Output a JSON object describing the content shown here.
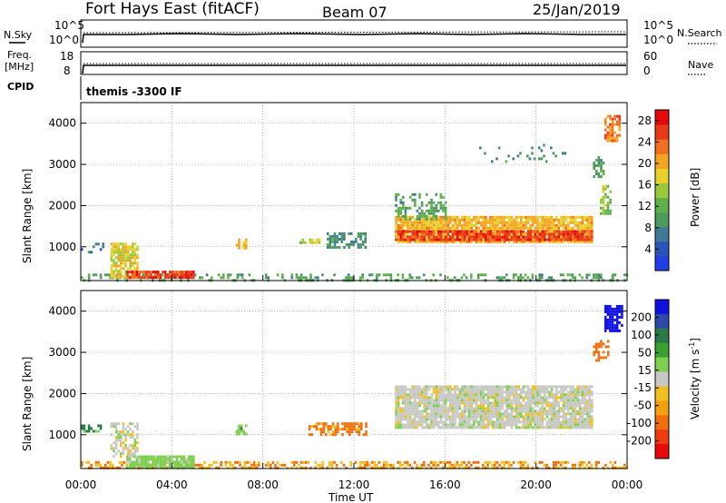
{
  "header": {
    "title": "Fort Hays East (fitACF)",
    "beam": "Beam 07",
    "date": "25/Jan/2019"
  },
  "strips": {
    "nsky": {
      "label": "N.Sky",
      "ticks": [
        "10^5",
        "10^0"
      ],
      "right_label": "N.Search",
      "right_ticks": [
        "10^5",
        "10^0"
      ]
    },
    "freq": {
      "label_top": "Freq.",
      "label_bottom": "[MHz]",
      "ticks": [
        "18",
        "8"
      ],
      "right_label": "Nave",
      "right_ticks": [
        "60",
        "0"
      ]
    },
    "cpid": {
      "label": "CPID",
      "text": "themis -3300 IF"
    }
  },
  "colors": {
    "power": [
      "#1f3ee6",
      "#2a55b8",
      "#3e7a93",
      "#4e9a5e",
      "#5fb04a",
      "#9ac93a",
      "#e8d12a",
      "#f3a522",
      "#f07020",
      "#e83a18",
      "#e40a0a"
    ],
    "velocity": [
      "#1010e0",
      "#2d4aa8",
      "#2a7a48",
      "#3aa030",
      "#7fd050",
      "#c8c8c4",
      "#f0c020",
      "#f4a010",
      "#f07010",
      "#f03a10",
      "#e80a0a"
    ],
    "grid": "#888888"
  },
  "chart_data": [
    {
      "type": "heatmap",
      "name": "power",
      "ylabel": "Slant Range [km]",
      "xlabel": "Time UT",
      "x_ticks": [
        "00:00",
        "04:00",
        "08:00",
        "12:00",
        "16:00",
        "20:00",
        "00:00"
      ],
      "y_ticks": [
        1000,
        2000,
        3000,
        4000
      ],
      "xlim_hours": [
        0,
        24
      ],
      "ylim_km": [
        180,
        4500
      ],
      "colorbar": {
        "label": "Power [dB]",
        "ticks": [
          4,
          8,
          12,
          16,
          20,
          24,
          28
        ],
        "range": [
          0,
          30
        ]
      },
      "regions": [
        {
          "t0": 0.0,
          "t1": 24.0,
          "r0": 200,
          "r1": 350,
          "v": 10,
          "density": 0.35
        },
        {
          "t0": 1.3,
          "t1": 2.5,
          "r0": 250,
          "r1": 1100,
          "v": 18,
          "density": 0.8
        },
        {
          "t0": 2.0,
          "t1": 5.0,
          "r0": 230,
          "r1": 420,
          "v": 27,
          "density": 0.9
        },
        {
          "t0": 0.0,
          "t1": 1.0,
          "r0": 900,
          "r1": 1100,
          "v": 6,
          "density": 0.3
        },
        {
          "t0": 6.8,
          "t1": 7.3,
          "r0": 950,
          "r1": 1200,
          "v": 20,
          "density": 0.7
        },
        {
          "t0": 9.5,
          "t1": 10.5,
          "r0": 1100,
          "r1": 1200,
          "v": 16,
          "density": 0.6
        },
        {
          "t0": 10.8,
          "t1": 12.5,
          "r0": 1000,
          "r1": 1350,
          "v": 8,
          "density": 0.6
        },
        {
          "t0": 13.8,
          "t1": 22.5,
          "r0": 1100,
          "r1": 1750,
          "v": 20,
          "density": 0.9
        },
        {
          "t0": 13.8,
          "t1": 22.5,
          "r0": 1200,
          "r1": 1400,
          "v": 27,
          "density": 0.85
        },
        {
          "t0": 13.8,
          "t1": 16.0,
          "r0": 1700,
          "r1": 2300,
          "v": 10,
          "density": 0.4
        },
        {
          "t0": 22.8,
          "t1": 23.3,
          "r0": 1800,
          "r1": 2500,
          "v": 14,
          "density": 0.6
        },
        {
          "t0": 22.5,
          "t1": 23.0,
          "r0": 2700,
          "r1": 3200,
          "v": 10,
          "density": 0.5
        },
        {
          "t0": 23.0,
          "t1": 23.7,
          "r0": 3600,
          "r1": 4200,
          "v": 24,
          "density": 0.7
        },
        {
          "t0": 17.5,
          "t1": 21.5,
          "r0": 3100,
          "r1": 3500,
          "v": 8,
          "density": 0.08
        }
      ]
    },
    {
      "type": "heatmap",
      "name": "velocity",
      "ylabel": "Slant Range [km]",
      "xlabel": "Time UT",
      "x_ticks": [
        "00:00",
        "04:00",
        "08:00",
        "12:00",
        "16:00",
        "20:00",
        "00:00"
      ],
      "y_ticks": [
        1000,
        2000,
        3000,
        4000
      ],
      "xlim_hours": [
        0,
        24
      ],
      "ylim_km": [
        180,
        4500
      ],
      "colorbar": {
        "label": "Velocity [m s^-1]",
        "ticks": [
          200,
          100,
          50,
          15,
          -15,
          -50,
          -100,
          -200
        ]
      },
      "regions": [
        {
          "t0": 0.0,
          "t1": 24.0,
          "r0": 200,
          "r1": 360,
          "v": -50,
          "density": 0.5
        },
        {
          "t0": 1.3,
          "t1": 2.5,
          "r0": 500,
          "r1": 1300,
          "v": 0,
          "density": 0.6
        },
        {
          "t0": 2.0,
          "t1": 5.0,
          "r0": 230,
          "r1": 500,
          "v": 30,
          "density": 0.9
        },
        {
          "t0": 0.0,
          "t1": 1.0,
          "r0": 1100,
          "r1": 1250,
          "v": 60,
          "density": 0.5
        },
        {
          "t0": 6.8,
          "t1": 7.3,
          "r0": 1050,
          "r1": 1250,
          "v": 40,
          "density": 0.6
        },
        {
          "t0": 10.0,
          "t1": 12.5,
          "r0": 1000,
          "r1": 1300,
          "v": -60,
          "density": 0.6
        },
        {
          "t0": 13.8,
          "t1": 22.5,
          "r0": 1200,
          "r1": 2200,
          "v": 0,
          "density": 0.9
        },
        {
          "t0": 22.5,
          "t1": 23.2,
          "r0": 2800,
          "r1": 3300,
          "v": -70,
          "density": 0.5
        },
        {
          "t0": 23.0,
          "t1": 23.8,
          "r0": 3500,
          "r1": 4150,
          "v": 230,
          "density": 0.8
        }
      ]
    }
  ]
}
